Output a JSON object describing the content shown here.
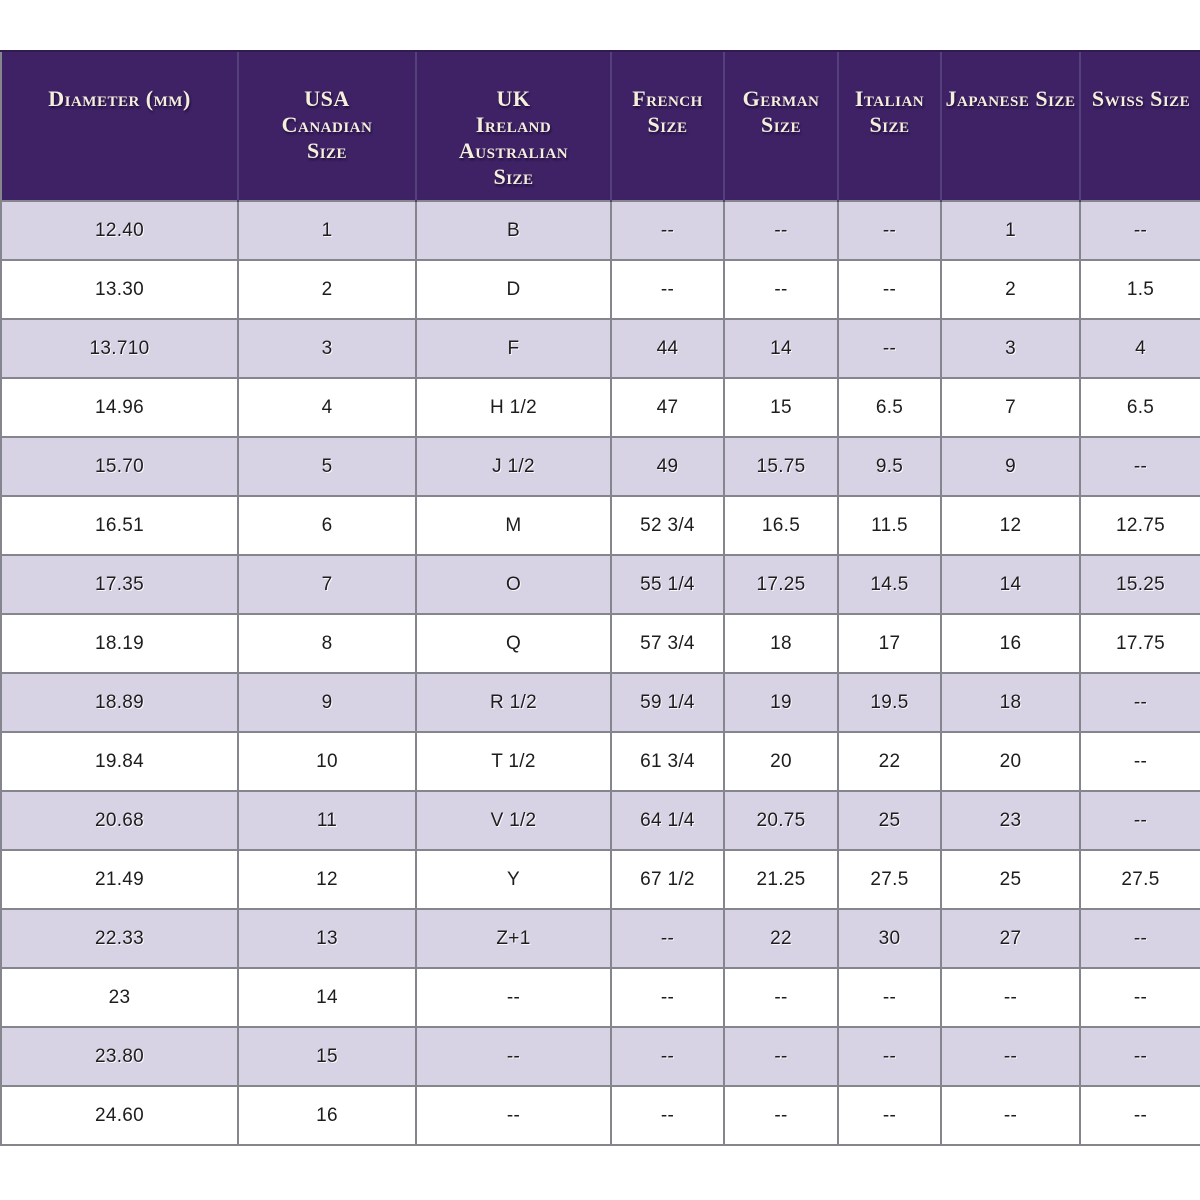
{
  "chart_data": {
    "type": "table",
    "columns": [
      {
        "key": "diameter_mm",
        "header_lines": [
          "Diameter (mm)"
        ]
      },
      {
        "key": "usa_canadian",
        "header_lines": [
          "USA",
          "Canadian",
          "Size"
        ]
      },
      {
        "key": "uk_ireland_australian",
        "header_lines": [
          "UK",
          "Ireland",
          "Australian",
          "Size"
        ]
      },
      {
        "key": "french",
        "header_lines": [
          "French",
          "Size"
        ]
      },
      {
        "key": "german",
        "header_lines": [
          "German",
          "Size"
        ]
      },
      {
        "key": "italian",
        "header_lines": [
          "Italian",
          "Size"
        ]
      },
      {
        "key": "japanese",
        "header_lines": [
          "Japanese Size"
        ]
      },
      {
        "key": "swiss",
        "header_lines": [
          "Swiss Size"
        ]
      }
    ],
    "rows": [
      [
        "12.40",
        "1",
        "B",
        "--",
        "--",
        "--",
        "1",
        "--"
      ],
      [
        "13.30",
        "2",
        "D",
        "--",
        "--",
        "--",
        "2",
        "1.5"
      ],
      [
        "13.710",
        "3",
        "F",
        "44",
        "14",
        "--",
        "3",
        "4"
      ],
      [
        "14.96",
        "4",
        "H 1/2",
        "47",
        "15",
        "6.5",
        "7",
        "6.5"
      ],
      [
        "15.70",
        "5",
        "J 1/2",
        "49",
        "15.75",
        "9.5",
        "9",
        "--"
      ],
      [
        "16.51",
        "6",
        "M",
        "52 3/4",
        "16.5",
        "11.5",
        "12",
        "12.75"
      ],
      [
        "17.35",
        "7",
        "O",
        "55 1/4",
        "17.25",
        "14.5",
        "14",
        "15.25"
      ],
      [
        "18.19",
        "8",
        "Q",
        "57 3/4",
        "18",
        "17",
        "16",
        "17.75"
      ],
      [
        "18.89",
        "9",
        "R 1/2",
        "59 1/4",
        "19",
        "19.5",
        "18",
        "--"
      ],
      [
        "19.84",
        "10",
        "T 1/2",
        "61 3/4",
        "20",
        "22",
        "20",
        "--"
      ],
      [
        "20.68",
        "11",
        "V 1/2",
        "64 1/4",
        "20.75",
        "25",
        "23",
        "--"
      ],
      [
        "21.49",
        "12",
        "Y",
        "67 1/2",
        "21.25",
        "27.5",
        "25",
        "27.5"
      ],
      [
        "22.33",
        "13",
        "Z+1",
        "--",
        "22",
        "30",
        "27",
        "--"
      ],
      [
        "23",
        "14",
        "--",
        "--",
        "--",
        "--",
        "--",
        "--"
      ],
      [
        "23.80",
        "15",
        "--",
        "--",
        "--",
        "--",
        "--",
        "--"
      ],
      [
        "24.60",
        "16",
        "--",
        "--",
        "--",
        "--",
        "--",
        "--"
      ]
    ]
  },
  "colors": {
    "header_background": "#3e2265",
    "header_text": "#f5eedd",
    "row_shade": "#d8d2e5",
    "row_plain": "#ffffff",
    "border": "#85858d",
    "body_text": "#1d1d1d"
  }
}
